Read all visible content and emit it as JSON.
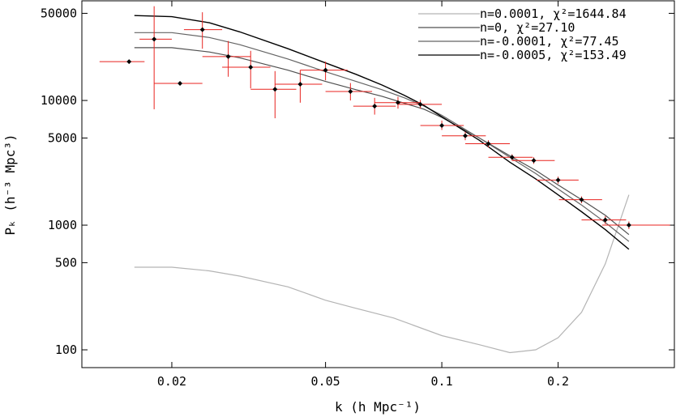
{
  "chart_data": {
    "type": "scatter",
    "title": "",
    "xlabel": "k (h Mpc⁻¹)",
    "ylabel": "Pₖ (h⁻³ Mpc³)",
    "x_scale": "log",
    "y_scale": "log",
    "xlim": [
      0.0117,
      0.4
    ],
    "ylim": [
      72,
      63000
    ],
    "x_ticks": [
      {
        "value": 0.02,
        "label": "0.02"
      },
      {
        "value": 0.05,
        "label": "0.05"
      },
      {
        "value": 0.1,
        "label": "0.1"
      },
      {
        "value": 0.2,
        "label": "0.2"
      }
    ],
    "y_ticks": [
      {
        "value": 50000,
        "label": "50000"
      },
      {
        "value": 10000,
        "label": "10000"
      },
      {
        "value": 5000,
        "label": "5000"
      },
      {
        "value": 1000,
        "label": "1000"
      },
      {
        "value": 500,
        "label": "500"
      },
      {
        "value": 100,
        "label": "100"
      }
    ],
    "grid": false,
    "legend_position": "top-right",
    "legend": [
      {
        "text": "n=0.0001, χ²=1644.84",
        "color": "#b4b4b4"
      },
      {
        "text": "n=0, χ²=27.10",
        "color": "#505050"
      },
      {
        "text": "n=-0.0001, χ²=77.45",
        "color": "#646464"
      },
      {
        "text": "n=-0.0005, χ²=153.49",
        "color": "#000000"
      }
    ],
    "data_points": {
      "marker_color": "#000000",
      "error_bar_color": "#e8231f",
      "points": [
        {
          "x": 0.0155,
          "y": 20500,
          "xlo": 0.013,
          "xhi": 0.017,
          "ylo": 20500,
          "yhi": 20500
        },
        {
          "x": 0.018,
          "y": 31000,
          "xlo": 0.0165,
          "xhi": 0.02,
          "ylo": 8500,
          "yhi": 57000
        },
        {
          "x": 0.021,
          "y": 13700,
          "xlo": 0.018,
          "xhi": 0.024,
          "ylo": 13700,
          "yhi": 13700
        },
        {
          "x": 0.024,
          "y": 37000,
          "xlo": 0.0215,
          "xhi": 0.027,
          "ylo": 26000,
          "yhi": 51000
        },
        {
          "x": 0.028,
          "y": 22500,
          "xlo": 0.024,
          "xhi": 0.032,
          "ylo": 15500,
          "yhi": 30000
        },
        {
          "x": 0.032,
          "y": 18500,
          "xlo": 0.027,
          "xhi": 0.036,
          "ylo": 12500,
          "yhi": 25000
        },
        {
          "x": 0.037,
          "y": 12300,
          "xlo": 0.032,
          "xhi": 0.042,
          "ylo": 7200,
          "yhi": 17200
        },
        {
          "x": 0.043,
          "y": 13500,
          "xlo": 0.037,
          "xhi": 0.049,
          "ylo": 9600,
          "yhi": 17500
        },
        {
          "x": 0.05,
          "y": 17500,
          "xlo": 0.043,
          "xhi": 0.057,
          "ylo": 14500,
          "yhi": 20500
        },
        {
          "x": 0.058,
          "y": 11800,
          "xlo": 0.05,
          "xhi": 0.066,
          "ylo": 10000,
          "yhi": 13800
        },
        {
          "x": 0.067,
          "y": 9000,
          "xlo": 0.059,
          "xhi": 0.076,
          "ylo": 7700,
          "yhi": 10500
        },
        {
          "x": 0.077,
          "y": 9600,
          "xlo": 0.067,
          "xhi": 0.088,
          "ylo": 8600,
          "yhi": 10700
        },
        {
          "x": 0.088,
          "y": 9300,
          "xlo": 0.077,
          "xhi": 0.1,
          "ylo": 8600,
          "yhi": 10100
        },
        {
          "x": 0.1,
          "y": 6300,
          "xlo": 0.088,
          "xhi": 0.114,
          "ylo": 5800,
          "yhi": 6900
        },
        {
          "x": 0.115,
          "y": 5200,
          "xlo": 0.1,
          "xhi": 0.13,
          "ylo": 4800,
          "yhi": 5600
        },
        {
          "x": 0.132,
          "y": 4500,
          "xlo": 0.115,
          "xhi": 0.15,
          "ylo": 4200,
          "yhi": 4800
        },
        {
          "x": 0.152,
          "y": 3500,
          "xlo": 0.132,
          "xhi": 0.172,
          "ylo": 3300,
          "yhi": 3700
        },
        {
          "x": 0.173,
          "y": 3300,
          "xlo": 0.152,
          "xhi": 0.196,
          "ylo": 3100,
          "yhi": 3500
        },
        {
          "x": 0.2,
          "y": 2300,
          "xlo": 0.176,
          "xhi": 0.226,
          "ylo": 2150,
          "yhi": 2450
        },
        {
          "x": 0.23,
          "y": 1600,
          "xlo": 0.201,
          "xhi": 0.26,
          "ylo": 1500,
          "yhi": 1700
        },
        {
          "x": 0.265,
          "y": 1100,
          "xlo": 0.23,
          "xhi": 0.3,
          "ylo": 1020,
          "yhi": 1180
        },
        {
          "x": 0.305,
          "y": 1000,
          "xlo": 0.26,
          "xhi": 0.39,
          "ylo": 930,
          "yhi": 1070
        }
      ]
    },
    "series": [
      {
        "name": "n=0.0001, χ²=1644.84",
        "color": "#b4b4b4",
        "width": 1.2,
        "x": [
          0.016,
          0.02,
          0.025,
          0.03,
          0.04,
          0.05,
          0.06,
          0.075,
          0.1,
          0.125,
          0.15,
          0.175,
          0.2,
          0.23,
          0.265,
          0.305
        ],
        "y": [
          460,
          460,
          430,
          390,
          320,
          250,
          215,
          180,
          130,
          110,
          95,
          100,
          125,
          200,
          490,
          1750
        ]
      },
      {
        "name": "n=0, χ²=27.10",
        "color": "#505050",
        "width": 1.2,
        "x": [
          0.016,
          0.02,
          0.025,
          0.03,
          0.04,
          0.05,
          0.06,
          0.07,
          0.08,
          0.09,
          0.1,
          0.125,
          0.15,
          0.175,
          0.2,
          0.23,
          0.265,
          0.305
        ],
        "y": [
          26500,
          26500,
          24500,
          22000,
          17500,
          14200,
          12200,
          10800,
          9500,
          8500,
          7300,
          5000,
          3600,
          2750,
          2100,
          1600,
          1200,
          840
        ]
      },
      {
        "name": "n=-0.0001, χ²=77.45",
        "color": "#646464",
        "width": 1.2,
        "x": [
          0.016,
          0.02,
          0.025,
          0.03,
          0.04,
          0.05,
          0.06,
          0.07,
          0.08,
          0.09,
          0.1,
          0.125,
          0.15,
          0.175,
          0.2,
          0.23,
          0.265,
          0.305
        ],
        "y": [
          35000,
          35000,
          32000,
          28000,
          21500,
          17000,
          14200,
          12200,
          10500,
          9000,
          7600,
          5000,
          3500,
          2600,
          1950,
          1450,
          1050,
          740
        ]
      },
      {
        "name": "n=-0.0005, χ²=153.49",
        "color": "#000000",
        "width": 1.4,
        "x": [
          0.016,
          0.02,
          0.025,
          0.03,
          0.04,
          0.05,
          0.06,
          0.07,
          0.08,
          0.09,
          0.1,
          0.125,
          0.15,
          0.175,
          0.2,
          0.23,
          0.265,
          0.305
        ],
        "y": [
          48000,
          47000,
          42000,
          35500,
          26000,
          20000,
          16200,
          13300,
          11000,
          9100,
          7400,
          4800,
          3200,
          2350,
          1750,
          1280,
          920,
          640
        ]
      }
    ]
  }
}
